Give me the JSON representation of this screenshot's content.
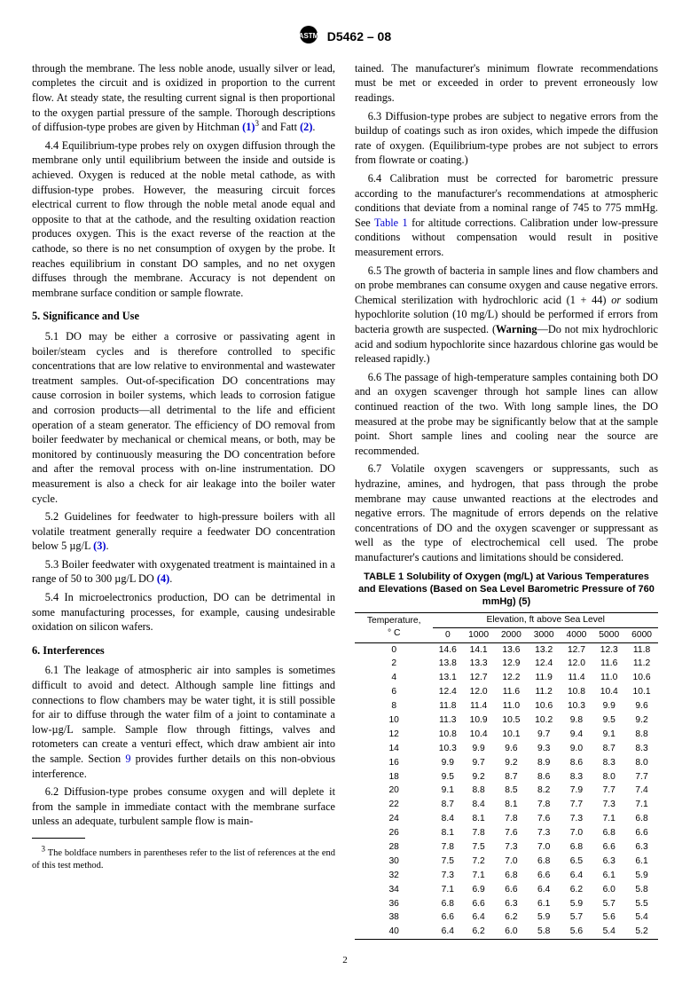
{
  "header": {
    "designation": "D5462 – 08"
  },
  "left": {
    "p_membrane": "through the membrane. The less noble anode, usually silver or lead, completes the circuit and is oxidized in proportion to the current flow. At steady state, the resulting current signal is then proportional to the oxygen partial pressure of the sample. Thorough descriptions of diffusion-type probes are given by Hitchman ",
    "ref1": "(1)",
    "sup3": "3",
    "and_fatt": " and Fatt ",
    "ref2": "(2)",
    "p_44": "4.4 Equilibrium-type probes rely on oxygen diffusion through the membrane only until equilibrium between the inside and outside is achieved. Oxygen is reduced at the noble metal cathode, as with diffusion-type probes. However, the measuring circuit forces electrical current to flow through the noble metal anode equal and opposite to that at the cathode, and the resulting oxidation reaction produces oxygen. This is the exact reverse of the reaction at the cathode, so there is no net consumption of oxygen by the probe. It reaches equilibrium in constant DO samples, and no net oxygen diffuses through the membrane. Accuracy is not dependent on membrane surface condition or sample flowrate.",
    "sec5_head": "5. Significance and Use",
    "p_51": "5.1 DO may be either a corrosive or passivating agent in boiler/steam cycles and is therefore controlled to specific concentrations that are low relative to environmental and wastewater treatment samples. Out-of-specification DO concentrations may cause corrosion in boiler systems, which leads to corrosion fatigue and corrosion products—all detrimental to the life and efficient operation of a steam generator. The efficiency of DO removal from boiler feedwater by mechanical or chemical means, or both, may be monitored by continuously measuring the DO concentration before and after the removal process with on-line instrumentation. DO measurement is also a check for air leakage into the boiler water cycle.",
    "p_52a": "5.2 Guidelines for feedwater to high-pressure boilers with all volatile treatment generally require a feedwater DO concentration below 5 µg/L ",
    "ref3": "(3)",
    "p_53a": "5.3 Boiler feedwater with oxygenated treatment is maintained in a range of 50 to 300 µg/L DO ",
    "ref4": "(4)",
    "p_54": "5.4 In microelectronics production, DO can be detrimental in some manufacturing processes, for example, causing undesirable oxidation on silicon wafers.",
    "sec6_head": "6. Interferences",
    "p_61a": "6.1 The leakage of atmospheric air into samples is sometimes difficult to avoid and detect. Although sample line fittings and connections to flow chambers may be water tight, it is still possible for air to diffuse through the water film of a joint to contaminate a low-µg/L sample. Sample flow through fittings, valves and rotometers can create a venturi effect, which draw ambient air into the sample. Section ",
    "sec9": "9",
    "p_61b": " provides further details on this non-obvious interference.",
    "p_62": "6.2 Diffusion-type probes consume oxygen and will deplete it from the sample in immediate contact with the membrane surface unless an adequate, turbulent sample flow is main-",
    "footnote": " The boldface numbers in parentheses refer to the list of references at the end of this test method."
  },
  "right": {
    "p_62b": "tained. The manufacturer's minimum flowrate recommendations must be met or exceeded in order to prevent erroneously low readings.",
    "p_63": "6.3 Diffusion-type probes are subject to negative errors from the buildup of coatings such as iron oxides, which impede the diffusion rate of oxygen. (Equilibrium-type probes are not subject to errors from flowrate or coating.)",
    "p_64a": "6.4 Calibration must be corrected for barometric pressure according to the manufacturer's recommendations at atmospheric conditions that deviate from a nominal range of 745 to 775 mmHg. See ",
    "table1_link": "Table 1",
    "p_64b": " for altitude corrections. Calibration under low-pressure conditions without compensation would result in positive measurement errors.",
    "p_65a": "6.5 The growth of bacteria in sample lines and flow chambers and on probe membranes can consume oxygen and cause negative errors. Chemical sterilization with hydrochloric acid (1 + 44) ",
    "p_65_or": "or",
    "p_65b": " sodium hypochlorite solution (10 mg/L) should be performed if errors from bacteria growth are suspected. (",
    "warning": "Warning",
    "p_65c": "—Do not mix hydrochloric acid and sodium hypochlorite since hazardous chlorine gas would be released rapidly.)",
    "p_66": "6.6 The passage of high-temperature samples containing both DO and an oxygen scavenger through hot sample lines can allow continued reaction of the two. With long sample lines, the DO measured at the probe may be significantly below that at the sample point. Short sample lines and cooling near the source are recommended.",
    "p_67": "6.7 Volatile oxygen scavengers or suppressants, such as hydrazine, amines, and hydrogen, that pass through the probe membrane may cause unwanted reactions at the electrodes and negative errors. The magnitude of errors depends on the relative concentrations of DO and the oxygen scavenger or suppressant as well as the type of electrochemical cell used. The probe manufacturer's cautions and limitations should be considered."
  },
  "table1": {
    "title": "TABLE 1 Solubility of Oxygen (mg/L) at Various Temperatures and Elevations (Based on Sea Level Barometric Pressure of 760 mmHg) (5)",
    "temp_head1": "Temperature,",
    "temp_head2": "° C",
    "elev_head": "Elevation, ft above Sea Level",
    "elev_cols": [
      "0",
      "1000",
      "2000",
      "3000",
      "4000",
      "5000",
      "6000"
    ],
    "rows": [
      [
        "0",
        "14.6",
        "14.1",
        "13.6",
        "13.2",
        "12.7",
        "12.3",
        "11.8"
      ],
      [
        "2",
        "13.8",
        "13.3",
        "12.9",
        "12.4",
        "12.0",
        "11.6",
        "11.2"
      ],
      [
        "4",
        "13.1",
        "12.7",
        "12.2",
        "11.9",
        "11.4",
        "11.0",
        "10.6"
      ],
      [
        "6",
        "12.4",
        "12.0",
        "11.6",
        "11.2",
        "10.8",
        "10.4",
        "10.1"
      ],
      [
        "8",
        "11.8",
        "11.4",
        "11.0",
        "10.6",
        "10.3",
        "9.9",
        "9.6"
      ],
      [
        "10",
        "11.3",
        "10.9",
        "10.5",
        "10.2",
        "9.8",
        "9.5",
        "9.2"
      ],
      [
        "12",
        "10.8",
        "10.4",
        "10.1",
        "9.7",
        "9.4",
        "9.1",
        "8.8"
      ],
      [
        "14",
        "10.3",
        "9.9",
        "9.6",
        "9.3",
        "9.0",
        "8.7",
        "8.3"
      ],
      [
        "16",
        "9.9",
        "9.7",
        "9.2",
        "8.9",
        "8.6",
        "8.3",
        "8.0"
      ],
      [
        "18",
        "9.5",
        "9.2",
        "8.7",
        "8.6",
        "8.3",
        "8.0",
        "7.7"
      ],
      [
        "20",
        "9.1",
        "8.8",
        "8.5",
        "8.2",
        "7.9",
        "7.7",
        "7.4"
      ],
      [
        "22",
        "8.7",
        "8.4",
        "8.1",
        "7.8",
        "7.7",
        "7.3",
        "7.1"
      ],
      [
        "24",
        "8.4",
        "8.1",
        "7.8",
        "7.6",
        "7.3",
        "7.1",
        "6.8"
      ],
      [
        "26",
        "8.1",
        "7.8",
        "7.6",
        "7.3",
        "7.0",
        "6.8",
        "6.6"
      ],
      [
        "28",
        "7.8",
        "7.5",
        "7.3",
        "7.0",
        "6.8",
        "6.6",
        "6.3"
      ],
      [
        "30",
        "7.5",
        "7.2",
        "7.0",
        "6.8",
        "6.5",
        "6.3",
        "6.1"
      ],
      [
        "32",
        "7.3",
        "7.1",
        "6.8",
        "6.6",
        "6.4",
        "6.1",
        "5.9"
      ],
      [
        "34",
        "7.1",
        "6.9",
        "6.6",
        "6.4",
        "6.2",
        "6.0",
        "5.8"
      ],
      [
        "36",
        "6.8",
        "6.6",
        "6.3",
        "6.1",
        "5.9",
        "5.7",
        "5.5"
      ],
      [
        "38",
        "6.6",
        "6.4",
        "6.2",
        "5.9",
        "5.7",
        "5.6",
        "5.4"
      ],
      [
        "40",
        "6.4",
        "6.2",
        "6.0",
        "5.8",
        "5.6",
        "5.4",
        "5.2"
      ]
    ]
  },
  "pagenum": "2"
}
